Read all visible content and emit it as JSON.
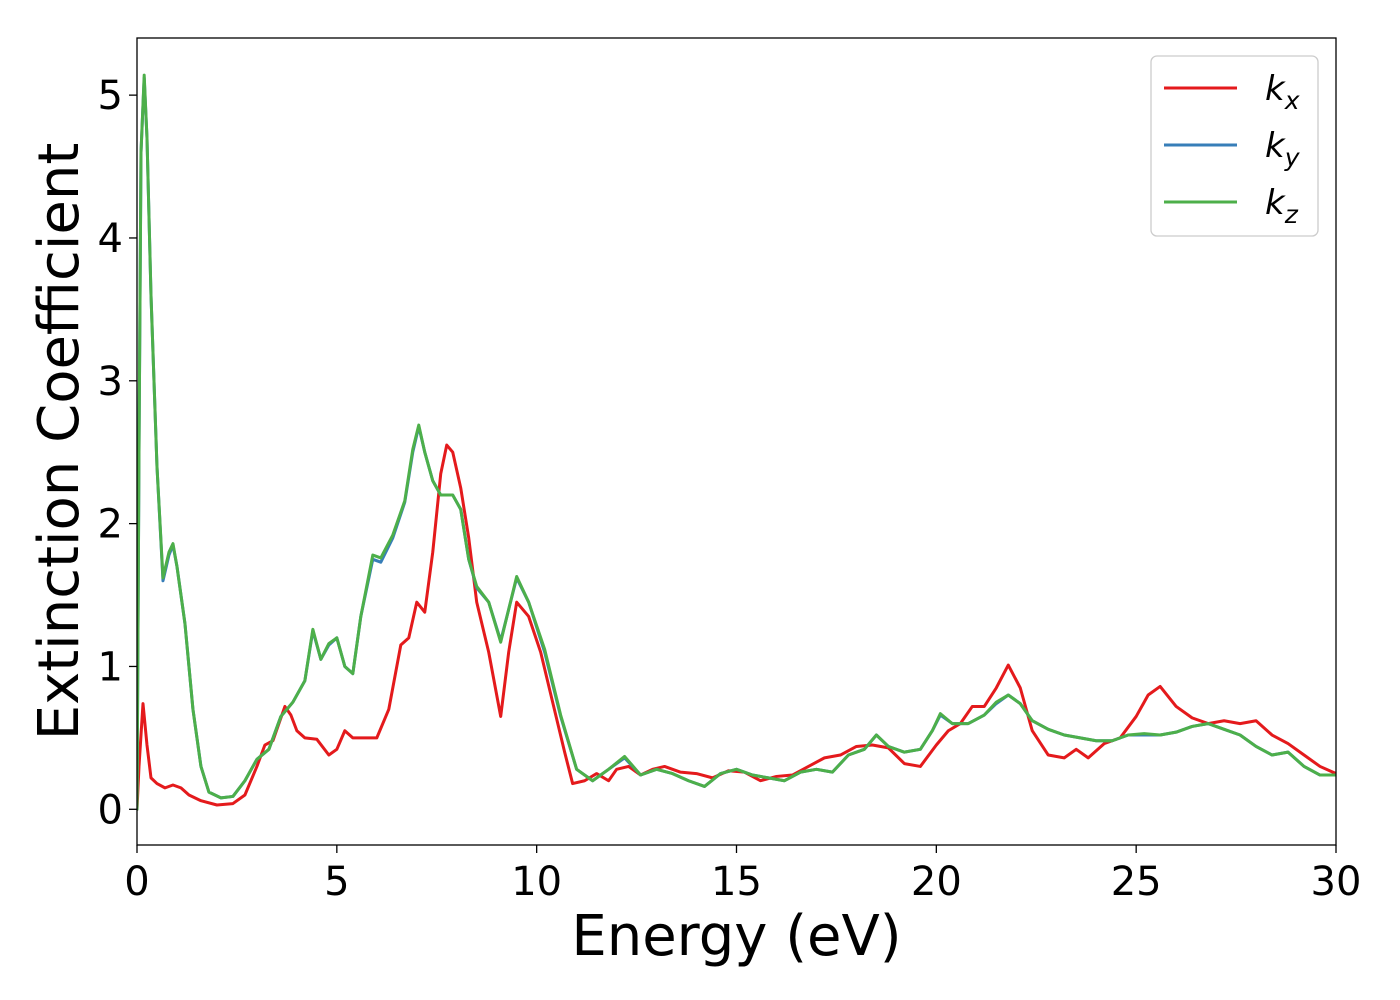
{
  "chart_data": {
    "type": "line",
    "title": "",
    "xlabel": "Energy (eV)",
    "ylabel": "Extinction Coefficient",
    "xlim": [
      0,
      30
    ],
    "ylim": [
      -0.25,
      5.4
    ],
    "xticks": [
      0,
      5,
      10,
      15,
      20,
      25,
      30
    ],
    "xtick_labels": [
      "0",
      "5",
      "10",
      "15",
      "20",
      "25",
      "30"
    ],
    "yticks": [
      0,
      1,
      2,
      3,
      4,
      5
    ],
    "ytick_labels": [
      "0",
      "1",
      "2",
      "3",
      "4",
      "5"
    ],
    "grid": false,
    "legend_position": "top-right",
    "series": [
      {
        "name": "k_x",
        "label_base": "k",
        "label_sub": "x",
        "color": "#e41a1c",
        "points": [
          [
            0,
            0
          ],
          [
            0.05,
            0.3
          ],
          [
            0.15,
            0.74
          ],
          [
            0.25,
            0.45
          ],
          [
            0.35,
            0.22
          ],
          [
            0.5,
            0.18
          ],
          [
            0.7,
            0.15
          ],
          [
            0.9,
            0.17
          ],
          [
            1.1,
            0.15
          ],
          [
            1.3,
            0.1
          ],
          [
            1.6,
            0.06
          ],
          [
            2.0,
            0.03
          ],
          [
            2.4,
            0.04
          ],
          [
            2.7,
            0.1
          ],
          [
            3.0,
            0.3
          ],
          [
            3.2,
            0.45
          ],
          [
            3.4,
            0.48
          ],
          [
            3.55,
            0.6
          ],
          [
            3.7,
            0.72
          ],
          [
            3.85,
            0.66
          ],
          [
            4.0,
            0.55
          ],
          [
            4.2,
            0.5
          ],
          [
            4.5,
            0.49
          ],
          [
            4.8,
            0.38
          ],
          [
            5.0,
            0.42
          ],
          [
            5.2,
            0.55
          ],
          [
            5.4,
            0.5
          ],
          [
            5.6,
            0.5
          ],
          [
            5.8,
            0.5
          ],
          [
            6.0,
            0.5
          ],
          [
            6.3,
            0.7
          ],
          [
            6.6,
            1.15
          ],
          [
            6.8,
            1.2
          ],
          [
            7.0,
            1.45
          ],
          [
            7.2,
            1.38
          ],
          [
            7.4,
            1.8
          ],
          [
            7.6,
            2.35
          ],
          [
            7.75,
            2.55
          ],
          [
            7.9,
            2.5
          ],
          [
            8.1,
            2.25
          ],
          [
            8.3,
            1.9
          ],
          [
            8.5,
            1.45
          ],
          [
            8.8,
            1.1
          ],
          [
            9.1,
            0.65
          ],
          [
            9.3,
            1.1
          ],
          [
            9.5,
            1.45
          ],
          [
            9.8,
            1.35
          ],
          [
            10.1,
            1.1
          ],
          [
            10.4,
            0.75
          ],
          [
            10.7,
            0.4
          ],
          [
            10.9,
            0.18
          ],
          [
            11.2,
            0.2
          ],
          [
            11.5,
            0.25
          ],
          [
            11.8,
            0.2
          ],
          [
            12.0,
            0.28
          ],
          [
            12.3,
            0.3
          ],
          [
            12.6,
            0.24
          ],
          [
            12.9,
            0.28
          ],
          [
            13.2,
            0.3
          ],
          [
            13.6,
            0.26
          ],
          [
            14.0,
            0.25
          ],
          [
            14.4,
            0.22
          ],
          [
            14.8,
            0.27
          ],
          [
            15.2,
            0.26
          ],
          [
            15.6,
            0.2
          ],
          [
            16.0,
            0.23
          ],
          [
            16.4,
            0.24
          ],
          [
            16.8,
            0.3
          ],
          [
            17.2,
            0.36
          ],
          [
            17.6,
            0.38
          ],
          [
            18.0,
            0.44
          ],
          [
            18.4,
            0.45
          ],
          [
            18.8,
            0.43
          ],
          [
            19.2,
            0.32
          ],
          [
            19.6,
            0.3
          ],
          [
            20.0,
            0.45
          ],
          [
            20.3,
            0.55
          ],
          [
            20.6,
            0.6
          ],
          [
            20.9,
            0.72
          ],
          [
            21.2,
            0.72
          ],
          [
            21.5,
            0.85
          ],
          [
            21.8,
            1.01
          ],
          [
            22.1,
            0.85
          ],
          [
            22.4,
            0.55
          ],
          [
            22.8,
            0.38
          ],
          [
            23.2,
            0.36
          ],
          [
            23.5,
            0.42
          ],
          [
            23.8,
            0.36
          ],
          [
            24.2,
            0.46
          ],
          [
            24.6,
            0.5
          ],
          [
            25.0,
            0.65
          ],
          [
            25.3,
            0.8
          ],
          [
            25.6,
            0.86
          ],
          [
            26.0,
            0.72
          ],
          [
            26.4,
            0.64
          ],
          [
            26.8,
            0.6
          ],
          [
            27.2,
            0.62
          ],
          [
            27.6,
            0.6
          ],
          [
            28.0,
            0.62
          ],
          [
            28.4,
            0.52
          ],
          [
            28.8,
            0.46
          ],
          [
            29.2,
            0.38
          ],
          [
            29.6,
            0.3
          ],
          [
            30.0,
            0.25
          ]
        ]
      },
      {
        "name": "k_y",
        "label_base": "k",
        "label_sub": "y",
        "color": "#377eb8",
        "points": [
          [
            0,
            0
          ],
          [
            0.05,
            2.5
          ],
          [
            0.1,
            4.6
          ],
          [
            0.18,
            5.12
          ],
          [
            0.25,
            4.7
          ],
          [
            0.35,
            3.6
          ],
          [
            0.5,
            2.4
          ],
          [
            0.65,
            1.6
          ],
          [
            0.8,
            1.78
          ],
          [
            0.9,
            1.85
          ],
          [
            1.0,
            1.7
          ],
          [
            1.2,
            1.3
          ],
          [
            1.4,
            0.7
          ],
          [
            1.6,
            0.3
          ],
          [
            1.8,
            0.12
          ],
          [
            2.1,
            0.08
          ],
          [
            2.4,
            0.09
          ],
          [
            2.7,
            0.2
          ],
          [
            3.0,
            0.35
          ],
          [
            3.3,
            0.42
          ],
          [
            3.6,
            0.65
          ],
          [
            3.9,
            0.75
          ],
          [
            4.2,
            0.9
          ],
          [
            4.4,
            1.25
          ],
          [
            4.6,
            1.05
          ],
          [
            4.8,
            1.15
          ],
          [
            5.0,
            1.2
          ],
          [
            5.2,
            1.0
          ],
          [
            5.4,
            0.95
          ],
          [
            5.6,
            1.35
          ],
          [
            5.9,
            1.75
          ],
          [
            6.1,
            1.73
          ],
          [
            6.4,
            1.9
          ],
          [
            6.7,
            2.15
          ],
          [
            6.9,
            2.5
          ],
          [
            7.05,
            2.68
          ],
          [
            7.2,
            2.5
          ],
          [
            7.4,
            2.3
          ],
          [
            7.6,
            2.2
          ],
          [
            7.9,
            2.2
          ],
          [
            8.1,
            2.1
          ],
          [
            8.3,
            1.75
          ],
          [
            8.5,
            1.55
          ],
          [
            8.8,
            1.45
          ],
          [
            9.1,
            1.18
          ],
          [
            9.3,
            1.4
          ],
          [
            9.5,
            1.62
          ],
          [
            9.8,
            1.45
          ],
          [
            10.2,
            1.1
          ],
          [
            10.6,
            0.65
          ],
          [
            11.0,
            0.28
          ],
          [
            11.4,
            0.2
          ],
          [
            11.8,
            0.28
          ],
          [
            12.2,
            0.36
          ],
          [
            12.6,
            0.24
          ],
          [
            13.0,
            0.28
          ],
          [
            13.4,
            0.25
          ],
          [
            13.8,
            0.2
          ],
          [
            14.2,
            0.16
          ],
          [
            14.6,
            0.25
          ],
          [
            15.0,
            0.28
          ],
          [
            15.4,
            0.24
          ],
          [
            15.8,
            0.22
          ],
          [
            16.2,
            0.2
          ],
          [
            16.6,
            0.26
          ],
          [
            17.0,
            0.28
          ],
          [
            17.4,
            0.26
          ],
          [
            17.8,
            0.38
          ],
          [
            18.2,
            0.42
          ],
          [
            18.5,
            0.52
          ],
          [
            18.8,
            0.44
          ],
          [
            19.2,
            0.4
          ],
          [
            19.6,
            0.42
          ],
          [
            19.9,
            0.55
          ],
          [
            20.1,
            0.66
          ],
          [
            20.4,
            0.6
          ],
          [
            20.8,
            0.6
          ],
          [
            21.2,
            0.66
          ],
          [
            21.5,
            0.74
          ],
          [
            21.8,
            0.8
          ],
          [
            22.1,
            0.74
          ],
          [
            22.4,
            0.62
          ],
          [
            22.8,
            0.56
          ],
          [
            23.2,
            0.52
          ],
          [
            23.6,
            0.5
          ],
          [
            24.0,
            0.48
          ],
          [
            24.4,
            0.48
          ],
          [
            24.8,
            0.52
          ],
          [
            25.2,
            0.52
          ],
          [
            25.6,
            0.52
          ],
          [
            26.0,
            0.54
          ],
          [
            26.4,
            0.58
          ],
          [
            26.8,
            0.6
          ],
          [
            27.2,
            0.56
          ],
          [
            27.6,
            0.52
          ],
          [
            28.0,
            0.44
          ],
          [
            28.4,
            0.38
          ],
          [
            28.8,
            0.4
          ],
          [
            29.2,
            0.3
          ],
          [
            29.6,
            0.24
          ],
          [
            30.0,
            0.24
          ]
        ]
      },
      {
        "name": "k_z",
        "label_base": "k",
        "label_sub": "z",
        "color": "#4daf4a",
        "points": [
          [
            0,
            0
          ],
          [
            0.05,
            2.5
          ],
          [
            0.1,
            4.6
          ],
          [
            0.18,
            5.14
          ],
          [
            0.25,
            4.7
          ],
          [
            0.35,
            3.6
          ],
          [
            0.5,
            2.4
          ],
          [
            0.65,
            1.62
          ],
          [
            0.8,
            1.8
          ],
          [
            0.9,
            1.86
          ],
          [
            1.0,
            1.7
          ],
          [
            1.2,
            1.3
          ],
          [
            1.4,
            0.7
          ],
          [
            1.6,
            0.3
          ],
          [
            1.8,
            0.12
          ],
          [
            2.1,
            0.08
          ],
          [
            2.4,
            0.09
          ],
          [
            2.7,
            0.2
          ],
          [
            3.0,
            0.35
          ],
          [
            3.3,
            0.42
          ],
          [
            3.6,
            0.65
          ],
          [
            3.9,
            0.75
          ],
          [
            4.2,
            0.9
          ],
          [
            4.4,
            1.26
          ],
          [
            4.6,
            1.05
          ],
          [
            4.8,
            1.16
          ],
          [
            5.0,
            1.2
          ],
          [
            5.2,
            1.0
          ],
          [
            5.4,
            0.95
          ],
          [
            5.6,
            1.35
          ],
          [
            5.9,
            1.78
          ],
          [
            6.1,
            1.76
          ],
          [
            6.4,
            1.92
          ],
          [
            6.7,
            2.16
          ],
          [
            6.9,
            2.52
          ],
          [
            7.05,
            2.69
          ],
          [
            7.2,
            2.5
          ],
          [
            7.4,
            2.3
          ],
          [
            7.6,
            2.2
          ],
          [
            7.9,
            2.2
          ],
          [
            8.1,
            2.1
          ],
          [
            8.3,
            1.75
          ],
          [
            8.5,
            1.56
          ],
          [
            8.8,
            1.45
          ],
          [
            9.1,
            1.17
          ],
          [
            9.3,
            1.4
          ],
          [
            9.5,
            1.63
          ],
          [
            9.8,
            1.45
          ],
          [
            10.2,
            1.12
          ],
          [
            10.6,
            0.66
          ],
          [
            11.0,
            0.28
          ],
          [
            11.4,
            0.2
          ],
          [
            11.8,
            0.28
          ],
          [
            12.2,
            0.37
          ],
          [
            12.6,
            0.24
          ],
          [
            13.0,
            0.28
          ],
          [
            13.4,
            0.25
          ],
          [
            13.8,
            0.2
          ],
          [
            14.2,
            0.16
          ],
          [
            14.6,
            0.25
          ],
          [
            15.0,
            0.28
          ],
          [
            15.4,
            0.24
          ],
          [
            15.8,
            0.22
          ],
          [
            16.2,
            0.2
          ],
          [
            16.6,
            0.26
          ],
          [
            17.0,
            0.28
          ],
          [
            17.4,
            0.26
          ],
          [
            17.8,
            0.38
          ],
          [
            18.2,
            0.42
          ],
          [
            18.5,
            0.52
          ],
          [
            18.8,
            0.44
          ],
          [
            19.2,
            0.4
          ],
          [
            19.6,
            0.42
          ],
          [
            19.9,
            0.55
          ],
          [
            20.1,
            0.67
          ],
          [
            20.4,
            0.6
          ],
          [
            20.8,
            0.6
          ],
          [
            21.2,
            0.66
          ],
          [
            21.5,
            0.75
          ],
          [
            21.8,
            0.8
          ],
          [
            22.1,
            0.74
          ],
          [
            22.4,
            0.62
          ],
          [
            22.8,
            0.56
          ],
          [
            23.2,
            0.52
          ],
          [
            23.6,
            0.5
          ],
          [
            24.0,
            0.48
          ],
          [
            24.4,
            0.48
          ],
          [
            24.8,
            0.52
          ],
          [
            25.2,
            0.53
          ],
          [
            25.6,
            0.52
          ],
          [
            26.0,
            0.54
          ],
          [
            26.4,
            0.58
          ],
          [
            26.8,
            0.6
          ],
          [
            27.2,
            0.56
          ],
          [
            27.6,
            0.52
          ],
          [
            28.0,
            0.44
          ],
          [
            28.4,
            0.38
          ],
          [
            28.8,
            0.4
          ],
          [
            29.2,
            0.3
          ],
          [
            29.6,
            0.24
          ],
          [
            30.0,
            0.24
          ]
        ]
      }
    ]
  }
}
